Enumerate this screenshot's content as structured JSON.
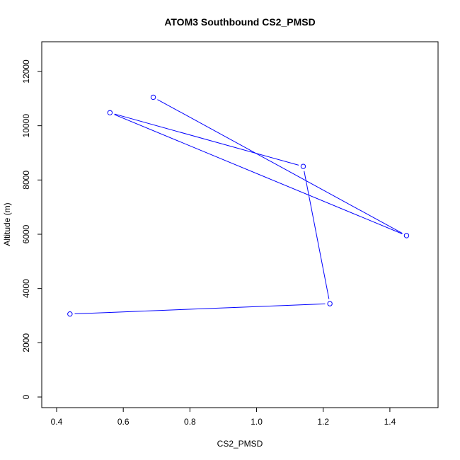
{
  "chart_data": {
    "type": "line",
    "title": "ATOM3 Southbound CS2_PMSD",
    "xlabel": "CS2_PMSD",
    "ylabel": "Altitude (m)",
    "xlim": [
      0.4,
      1.5
    ],
    "ylim": [
      0,
      12600
    ],
    "x_ticks": [
      "0.4",
      "0.6",
      "0.8",
      "1.0",
      "1.2",
      "1.4"
    ],
    "y_ticks": [
      "0",
      "2000",
      "4000",
      "6000",
      "8000",
      "10000",
      "12000"
    ],
    "grid": false,
    "series": [
      {
        "color": "#0000ff",
        "marker": "open-circle",
        "points": [
          {
            "x": 0.69,
            "y": 11050
          },
          {
            "x": 1.45,
            "y": 5950
          },
          {
            "x": 0.56,
            "y": 10480
          },
          {
            "x": 1.14,
            "y": 8500
          },
          {
            "x": 1.22,
            "y": 3440
          },
          {
            "x": 0.44,
            "y": 3060
          }
        ]
      }
    ]
  }
}
